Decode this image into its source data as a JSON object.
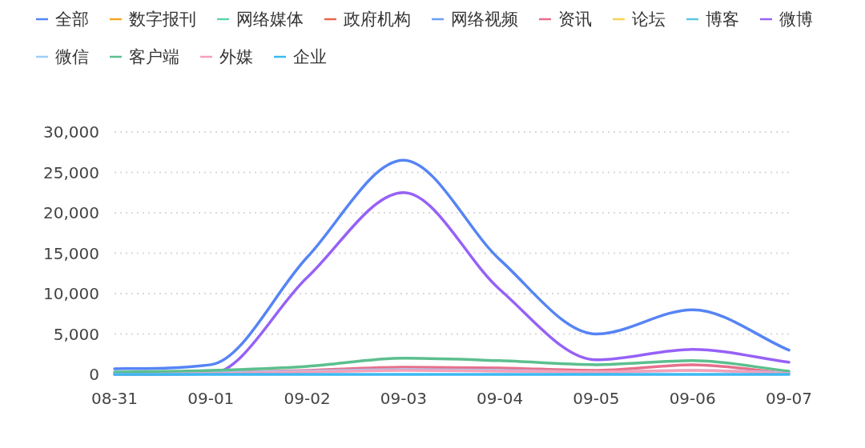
{
  "chart_data": {
    "type": "line",
    "categories": [
      "08-31",
      "09-01",
      "09-02",
      "09-03",
      "09-04",
      "09-05",
      "09-06",
      "09-07"
    ],
    "series": [
      {
        "name": "全部",
        "color": "#5684f5",
        "values": [
          700,
          1200,
          14500,
          26500,
          14200,
          5000,
          8000,
          3000
        ]
      },
      {
        "name": "数字报刊",
        "color": "#f5a623",
        "values": [
          null,
          null,
          null,
          null,
          null,
          null,
          null,
          null
        ]
      },
      {
        "name": "网络媒体",
        "color": "#5ad8a6",
        "values": [
          null,
          null,
          null,
          null,
          null,
          null,
          null,
          null
        ]
      },
      {
        "name": "政府机构",
        "color": "#e8684a",
        "values": [
          null,
          null,
          null,
          null,
          null,
          null,
          null,
          null
        ]
      },
      {
        "name": "网络视频",
        "color": "#6d9cf8",
        "values": [
          null,
          null,
          null,
          null,
          null,
          null,
          null,
          null
        ]
      },
      {
        "name": "资讯",
        "color": "#e86f8c",
        "values": [
          100,
          200,
          500,
          900,
          800,
          500,
          1200,
          100
        ]
      },
      {
        "name": "论坛",
        "color": "#f6d15a",
        "values": [
          null,
          null,
          null,
          null,
          null,
          null,
          null,
          null
        ]
      },
      {
        "name": "博客",
        "color": "#5bc8e0",
        "values": [
          null,
          null,
          null,
          null,
          null,
          null,
          null,
          null
        ]
      },
      {
        "name": "微博",
        "color": "#9661f7",
        "values": [
          0,
          100,
          12000,
          22500,
          10500,
          1800,
          3100,
          1500
        ]
      },
      {
        "name": "微信",
        "color": "#9ccff8",
        "values": [
          100,
          200,
          400,
          600,
          500,
          300,
          500,
          200
        ]
      },
      {
        "name": "客户端",
        "color": "#5bbf8e",
        "values": [
          300,
          500,
          1000,
          2000,
          1700,
          1200,
          1700,
          400
        ]
      },
      {
        "name": "外媒",
        "color": "#f5a0b8",
        "values": [
          0,
          100,
          300,
          500,
          400,
          300,
          500,
          100
        ]
      },
      {
        "name": "企业",
        "color": "#3bb9f2",
        "values": [
          0,
          0,
          0,
          0,
          0,
          0,
          0,
          0
        ]
      }
    ],
    "ylim": [
      0,
      30000
    ],
    "yticks": [
      0,
      {
        "value": 5000,
        "label": "5,000"
      },
      {
        "value": 10000,
        "label": "10,000"
      },
      {
        "value": 15000,
        "label": "15,000"
      },
      {
        "value": 20000,
        "label": "20,000"
      },
      {
        "value": 25000,
        "label": "25,000"
      },
      {
        "value": 30000,
        "label": "30,000"
      }
    ],
    "grid": "y",
    "legend": "top"
  }
}
